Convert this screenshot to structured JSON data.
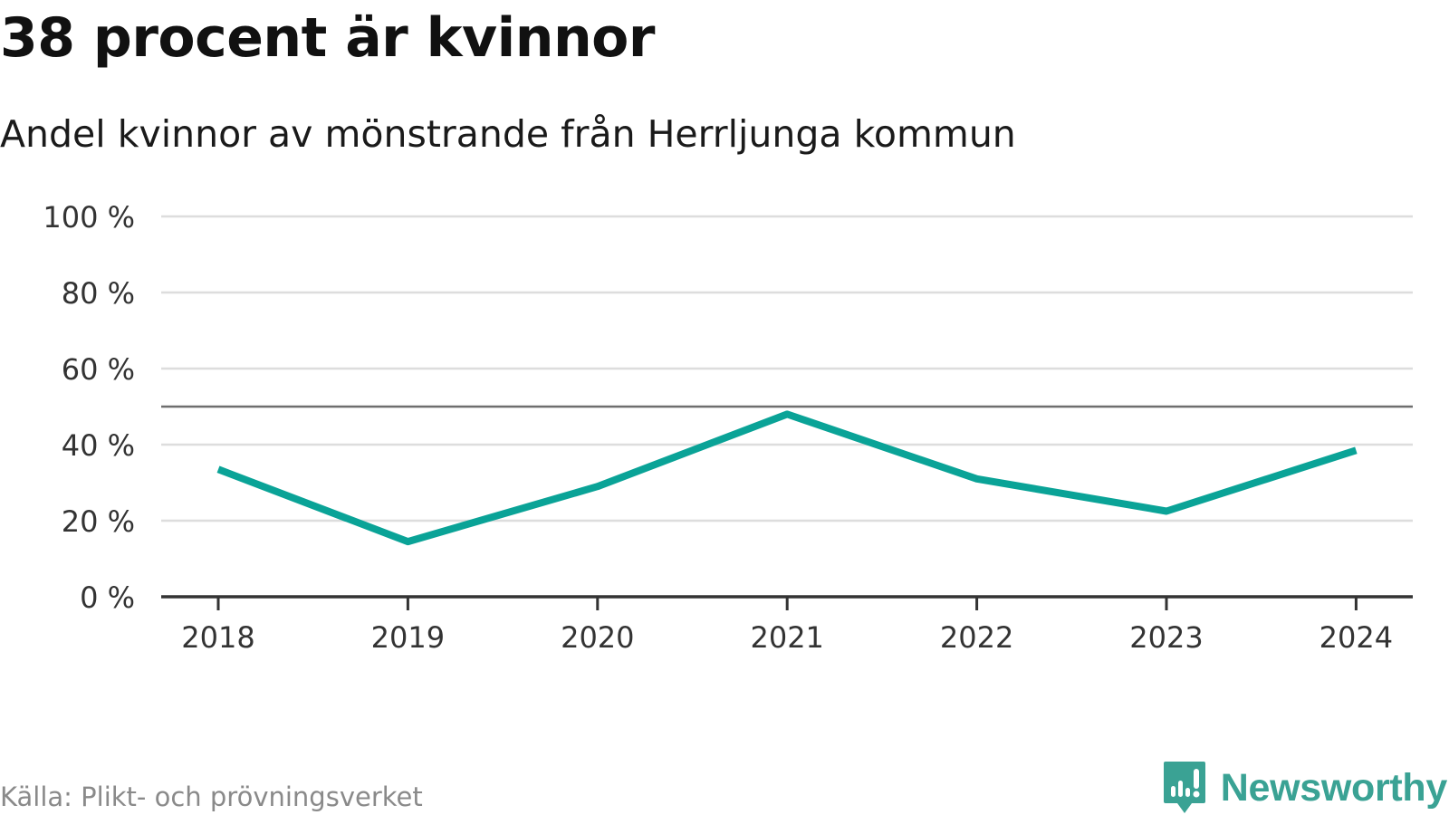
{
  "colors": {
    "line": "#0aa397",
    "grid": "#dddddd",
    "axis": "#333333",
    "reference": "#6e6e6e",
    "brand": "#3aa294"
  },
  "chart_data": {
    "type": "line",
    "title": "38 procent är kvinnor",
    "subtitle": "Andel kvinnor av mönstrande från Herrljunga kommun",
    "x": [
      "2018",
      "2019",
      "2020",
      "2021",
      "2022",
      "2023",
      "2024"
    ],
    "series": [
      {
        "name": "Andel kvinnor",
        "values": [
          33.5,
          14.5,
          29,
          48,
          31,
          22.5,
          38.5
        ]
      }
    ],
    "ylim": [
      0,
      100
    ],
    "yticks": [
      0,
      20,
      40,
      60,
      80,
      100
    ],
    "ytick_labels": [
      "0 %",
      "20 %",
      "40 %",
      "60 %",
      "80 %",
      "100 %"
    ],
    "reference_line": 50,
    "grid": true,
    "xlabel": "",
    "ylabel": ""
  },
  "footer": {
    "source": "Källa: Plikt- och prövningsverket",
    "brand": "Newsworthy",
    "brand_icon": "newsworthy-logo-icon"
  }
}
